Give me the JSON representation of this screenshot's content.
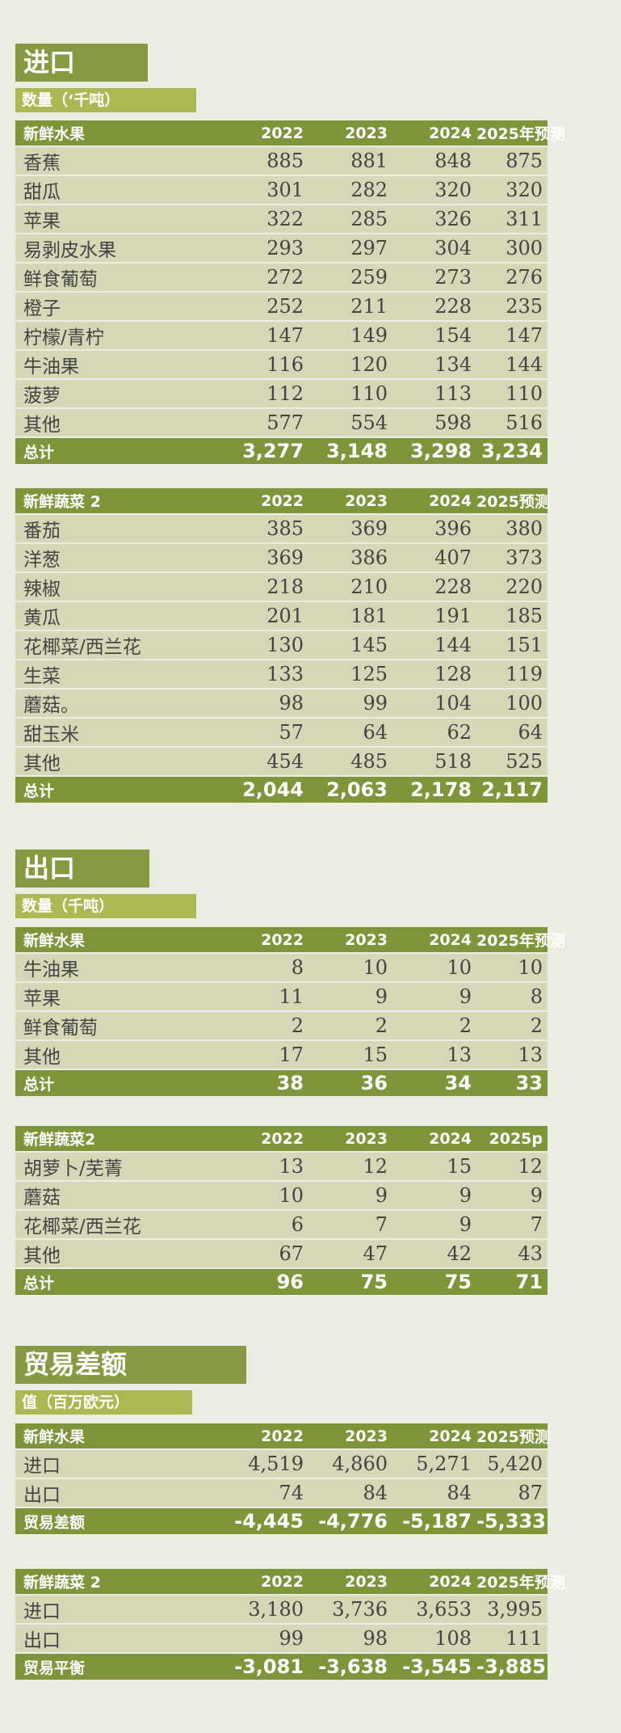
{
  "imports": {
    "title": "进口",
    "subtitle": "数量（‘千吨）",
    "fruit": {
      "headers": [
        "新鲜水果",
        "2022",
        "2023",
        "2024",
        "2025年预测"
      ],
      "rows": [
        [
          "香蕉",
          "885",
          "881",
          "848",
          "875"
        ],
        [
          "甜瓜",
          "301",
          "282",
          "320",
          "320"
        ],
        [
          "苹果",
          "322",
          "285",
          "326",
          "311"
        ],
        [
          "易剥皮水果",
          "293",
          "297",
          "304",
          "300"
        ],
        [
          "鲜食葡萄",
          "272",
          "259",
          "273",
          "276"
        ],
        [
          "橙子",
          "252",
          "211",
          "228",
          "235"
        ],
        [
          "柠檬/青柠",
          "147",
          "149",
          "154",
          "147"
        ],
        [
          "牛油果",
          "116",
          "120",
          "134",
          "144"
        ],
        [
          "菠萝",
          "112",
          "110",
          "113",
          "110"
        ],
        [
          "其他",
          "577",
          "554",
          "598",
          "516"
        ]
      ],
      "total": [
        "总计",
        "3,277",
        "3,148",
        "3,298",
        "3,234"
      ]
    },
    "veg": {
      "headers": [
        "新鲜蔬菜 2",
        "2022",
        "2023",
        "2024",
        "2025预测"
      ],
      "rows": [
        [
          "番茄",
          "385",
          "369",
          "396",
          "380"
        ],
        [
          "洋葱",
          "369",
          "386",
          "407",
          "373"
        ],
        [
          "辣椒",
          "218",
          "210",
          "228",
          "220"
        ],
        [
          "黄瓜",
          "201",
          "181",
          "191",
          "185"
        ],
        [
          "花椰菜/西兰花",
          "130",
          "145",
          "144",
          "151"
        ],
        [
          "生菜",
          "133",
          "125",
          "128",
          "119"
        ],
        [
          "蘑菇。",
          "98",
          "99",
          "104",
          "100"
        ],
        [
          "甜玉米",
          "57",
          "64",
          "62",
          "64"
        ],
        [
          "其他",
          "454",
          "485",
          "518",
          "525"
        ]
      ],
      "total": [
        "总计",
        "2,044",
        "2,063",
        "2,178",
        "2,117"
      ]
    }
  },
  "exports": {
    "title": "出口",
    "subtitle": "数量（千吨）",
    "fruit": {
      "headers": [
        "新鲜水果",
        "2022",
        "2023",
        "2024",
        "2025年预测"
      ],
      "rows": [
        [
          "牛油果",
          "8",
          "10",
          "10",
          "10"
        ],
        [
          "苹果",
          "11",
          "9",
          "9",
          "8"
        ],
        [
          "鲜食葡萄",
          "2",
          "2",
          "2",
          "2"
        ],
        [
          "其他",
          "17",
          "15",
          "13",
          "13"
        ]
      ],
      "total": [
        "总计",
        "38",
        "36",
        "34",
        "33"
      ]
    },
    "veg": {
      "headers": [
        "新鲜蔬菜2",
        "2022",
        "2023",
        "2024",
        "2025p"
      ],
      "rows": [
        [
          "胡萝卜/芜菁",
          "13",
          "12",
          "15",
          "12"
        ],
        [
          "蘑菇",
          "10",
          "9",
          "9",
          "9"
        ],
        [
          "花椰菜/西兰花",
          "6",
          "7",
          "9",
          "7"
        ],
        [
          "其他",
          "67",
          "47",
          "42",
          "43"
        ]
      ],
      "total": [
        "总计",
        "96",
        "75",
        "75",
        "71"
      ]
    }
  },
  "balance": {
    "title": "贸易差额",
    "subtitle": "值（百万欧元）",
    "fruit": {
      "headers": [
        "新鲜水果",
        "2022",
        "2023",
        "2024",
        "2025预测"
      ],
      "rows": [
        [
          "进口",
          "4,519",
          "4,860",
          "5,271",
          "5,420"
        ],
        [
          "出口",
          "74",
          "84",
          "84",
          "87"
        ]
      ],
      "total": [
        "贸易差额",
        "-4,445",
        "-4,776",
        "-5,187",
        "-5,333"
      ]
    },
    "veg": {
      "headers": [
        "新鲜蔬菜 2",
        "2022",
        "2023",
        "2024",
        "2025年预测"
      ],
      "rows": [
        [
          "进口",
          "3,180",
          "3,736",
          "3,653",
          "3,995"
        ],
        [
          "出口",
          "99",
          "98",
          "108",
          "111"
        ]
      ],
      "total": [
        "贸易平衡",
        "-3,081",
        "-3,638",
        "-3,545",
        "-3,885"
      ]
    }
  }
}
